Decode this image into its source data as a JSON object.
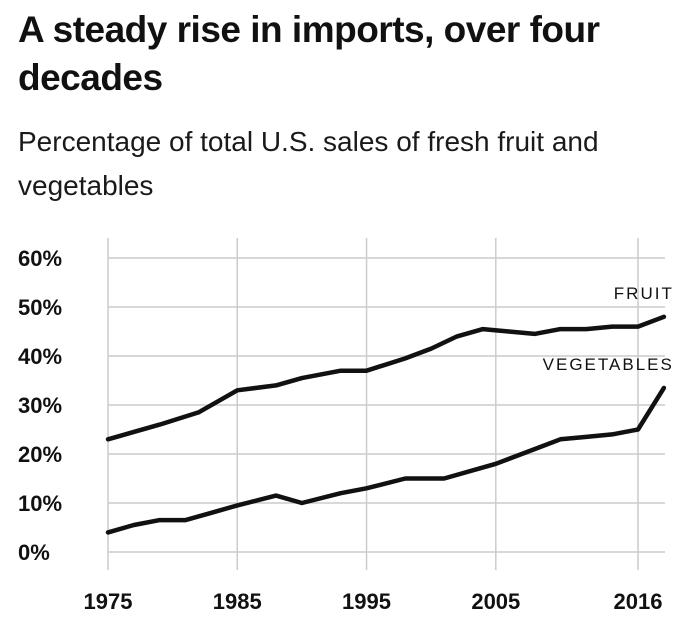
{
  "chart_data": {
    "type": "line",
    "title": "A steady rise in imports, over four decades",
    "subtitle": "Percentage of total U.S. sales of fresh fruit and vegetables",
    "xlabel": "",
    "ylabel": "",
    "xlim": [
      1975,
      2016
    ],
    "ylim": [
      0,
      60
    ],
    "y_ticks": [
      0,
      10,
      20,
      30,
      40,
      50,
      60
    ],
    "y_tick_labels": [
      "0%",
      "10%",
      "20%",
      "30%",
      "40%",
      "50%",
      "60%"
    ],
    "x_ticks": [
      1975,
      1985,
      1995,
      2005,
      2016
    ],
    "x_tick_labels": [
      "1975",
      "1985",
      "1995",
      "2005",
      "2016"
    ],
    "grid": true,
    "line_color": "#111111",
    "grid_color": "#cccccc",
    "series": [
      {
        "name": "FRUIT",
        "x": [
          1975,
          1979,
          1982,
          1985,
          1988,
          1990,
          1993,
          1995,
          1998,
          2000,
          2002,
          2004,
          2006,
          2008,
          2010,
          2012,
          2014,
          2016,
          2018
        ],
        "y": [
          23,
          26,
          28.5,
          33,
          34,
          35.5,
          37,
          37,
          39.5,
          41.5,
          44,
          45.5,
          45,
          44.5,
          45.5,
          45.5,
          46,
          46,
          48
        ]
      },
      {
        "name": "VEGETABLES",
        "x": [
          1975,
          1977,
          1979,
          1981,
          1983,
          1985,
          1988,
          1990,
          1993,
          1995,
          1998,
          2001,
          2005,
          2008,
          2010,
          2012,
          2014,
          2016,
          2018
        ],
        "y": [
          4,
          5.5,
          6.5,
          6.5,
          8,
          9.5,
          11.5,
          10,
          12,
          13,
          15,
          15,
          18,
          21,
          23,
          23.5,
          24,
          25,
          33.5
        ]
      }
    ]
  }
}
